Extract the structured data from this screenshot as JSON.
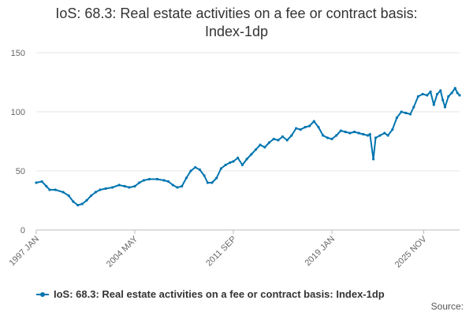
{
  "chart_data": {
    "type": "line",
    "title": "IoS: 68.3: Real estate activities on a fee or contract basis: Index-1dp",
    "title_lines": [
      "IoS: 68.3: Real estate activities on a fee or contract basis:",
      "Index-1dp"
    ],
    "xlabel": "",
    "ylabel": "",
    "ylim": [
      0,
      150
    ],
    "yticks": [
      "0",
      "50",
      "100",
      "150"
    ],
    "xticks": [
      "1997 JAN",
      "2004 MAY",
      "2011 SEP",
      "2019 JAN",
      "2025 NOV"
    ],
    "xlim": [
      "1997 JAN",
      "2025 NOV"
    ],
    "grid": "horizontal",
    "legend_position": "bottom-left",
    "series": [
      {
        "name": "IoS: 68.3: Real estate activities on a fee or contract basis: Index-1dp",
        "color": "#0075b0",
        "points": [
          [
            "1997-01",
            40
          ],
          [
            "1997-06",
            41
          ],
          [
            "1997-10",
            37
          ],
          [
            "1998-01",
            34
          ],
          [
            "1998-06",
            34
          ],
          [
            "1999-01",
            32
          ],
          [
            "1999-06",
            29
          ],
          [
            "1999-10",
            24
          ],
          [
            "2000-02",
            21
          ],
          [
            "2000-06",
            22
          ],
          [
            "2000-10",
            25
          ],
          [
            "2001-02",
            29
          ],
          [
            "2001-06",
            32
          ],
          [
            "2001-10",
            34
          ],
          [
            "2002-03",
            35
          ],
          [
            "2002-09",
            36
          ],
          [
            "2003-03",
            38
          ],
          [
            "2003-08",
            37
          ],
          [
            "2003-12",
            36
          ],
          [
            "2004-05",
            37
          ],
          [
            "2004-09",
            40
          ],
          [
            "2005-01",
            42
          ],
          [
            "2005-06",
            43
          ],
          [
            "2006-01",
            43
          ],
          [
            "2006-07",
            42
          ],
          [
            "2006-11",
            41
          ],
          [
            "2007-03",
            38
          ],
          [
            "2007-07",
            36
          ],
          [
            "2007-11",
            37
          ],
          [
            "2008-03",
            44
          ],
          [
            "2008-07",
            50
          ],
          [
            "2008-11",
            53
          ],
          [
            "2009-03",
            51
          ],
          [
            "2009-07",
            46
          ],
          [
            "2009-10",
            40
          ],
          [
            "2010-02",
            40
          ],
          [
            "2010-06",
            44
          ],
          [
            "2010-10",
            52
          ],
          [
            "2011-02",
            55
          ],
          [
            "2011-06",
            57
          ],
          [
            "2011-09",
            58
          ],
          [
            "2012-01",
            61
          ],
          [
            "2012-05",
            55
          ],
          [
            "2012-09",
            60
          ],
          [
            "2013-01",
            64
          ],
          [
            "2013-05",
            68
          ],
          [
            "2013-09",
            72
          ],
          [
            "2014-01",
            70
          ],
          [
            "2014-05",
            74
          ],
          [
            "2014-09",
            77
          ],
          [
            "2015-01",
            76
          ],
          [
            "2015-05",
            79
          ],
          [
            "2015-09",
            76
          ],
          [
            "2016-01",
            80
          ],
          [
            "2016-05",
            86
          ],
          [
            "2016-09",
            85
          ],
          [
            "2017-01",
            87
          ],
          [
            "2017-05",
            88
          ],
          [
            "2017-09",
            92
          ],
          [
            "2018-01",
            87
          ],
          [
            "2018-05",
            80
          ],
          [
            "2018-09",
            78
          ],
          [
            "2019-01",
            77
          ],
          [
            "2019-05",
            80
          ],
          [
            "2019-09",
            84
          ],
          [
            "2020-01",
            83
          ],
          [
            "2020-05",
            82
          ],
          [
            "2020-09",
            83
          ],
          [
            "2021-01",
            82
          ],
          [
            "2021-05",
            81
          ],
          [
            "2021-09",
            80
          ],
          [
            "2021-11",
            81
          ],
          [
            "2022-02",
            60
          ],
          [
            "2022-04",
            78
          ],
          [
            "2022-08",
            80
          ],
          [
            "2022-12",
            82
          ],
          [
            "2023-03",
            80
          ],
          [
            "2023-07",
            85
          ],
          [
            "2023-11",
            95
          ],
          [
            "2024-03",
            100
          ],
          [
            "2024-07",
            99
          ],
          [
            "2024-11",
            98
          ],
          [
            "2025-02",
            104
          ],
          [
            "2025-06",
            113
          ],
          [
            "2025-10",
            115
          ],
          [
            "2026-02",
            114
          ],
          [
            "2026-05",
            117
          ],
          [
            "2026-08",
            106
          ],
          [
            "2026-11",
            115
          ],
          [
            "2027-02",
            118
          ],
          [
            "2027-04",
            110
          ],
          [
            "2027-06",
            104
          ],
          [
            "2027-09",
            113
          ],
          [
            "2027-12",
            116
          ],
          [
            "2028-03",
            120
          ],
          [
            "2028-05",
            116
          ],
          [
            "2028-07",
            114
          ]
        ]
      }
    ],
    "source_label": "Source:"
  }
}
